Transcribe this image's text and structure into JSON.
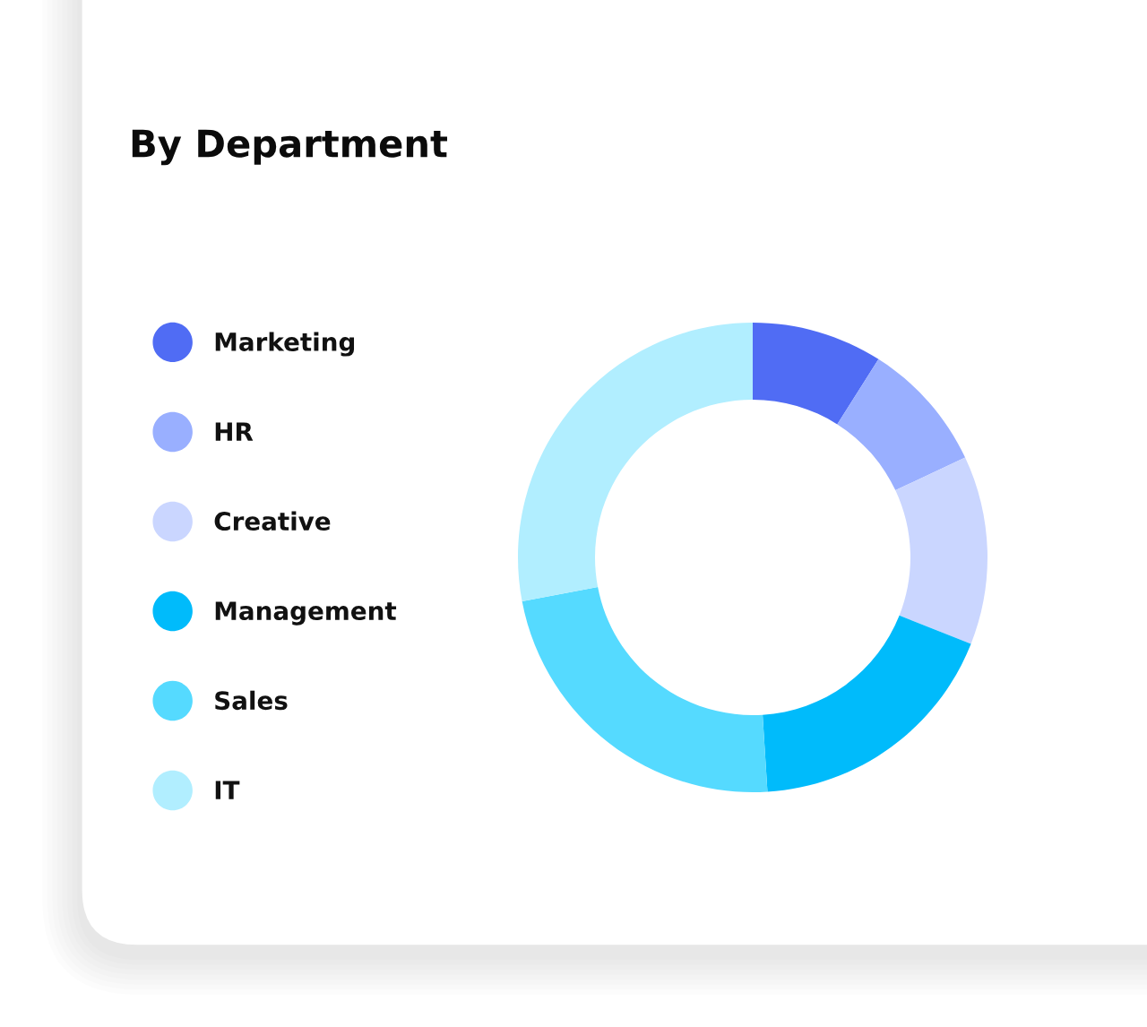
{
  "chart_data": {
    "type": "donut",
    "title": "By Department",
    "categories": [
      "Marketing",
      "HR",
      "Creative",
      "Management",
      "Sales",
      "IT"
    ],
    "values": [
      9,
      9,
      13,
      18,
      23,
      28
    ],
    "colors": [
      "#506cf4",
      "#99afff",
      "#cad6ff",
      "#00bbfb",
      "#55daff",
      "#b1eeff"
    ],
    "legend": "left"
  }
}
